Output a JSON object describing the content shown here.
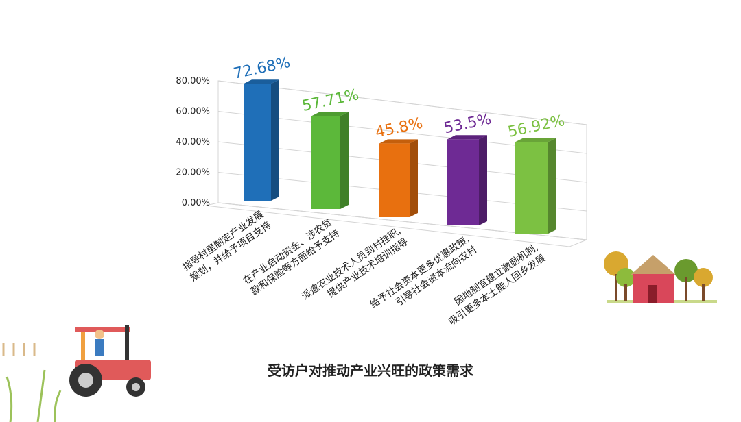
{
  "chart_data": {
    "type": "bar3d",
    "title": "受访户对推动产业兴旺的政策需求",
    "categories": [
      "指导村里制定产业发展\n规划，并给予项目支持",
      "在产业启动资金、涉农贷\n款和保险等方面给予支持",
      "派遣农业技术人员到村挂职,\n提供产业技术培训指导",
      "给予社会资本更多优惠政策,\n引导社会资本流向农村",
      "因地制宜建立激励机制,\n吸引更多本土能人回乡发展"
    ],
    "values": [
      72.68,
      57.71,
      45.8,
      53.5,
      56.92
    ],
    "value_labels": [
      "72.68%",
      "57.71%",
      "45.8%",
      "53.5%",
      "56.92%"
    ],
    "colors": [
      "#1f6fb8",
      "#5cb83a",
      "#e8700f",
      "#6e2a94",
      "#7cc142"
    ],
    "ylim": [
      0,
      80
    ],
    "yticks": [
      {
        "value": 0,
        "label": "0.00%"
      },
      {
        "value": 20,
        "label": "20.00%"
      },
      {
        "value": 40,
        "label": "40.00%"
      },
      {
        "value": 60,
        "label": "60.00%"
      },
      {
        "value": 80,
        "label": "80.00%"
      }
    ],
    "grid": true
  }
}
